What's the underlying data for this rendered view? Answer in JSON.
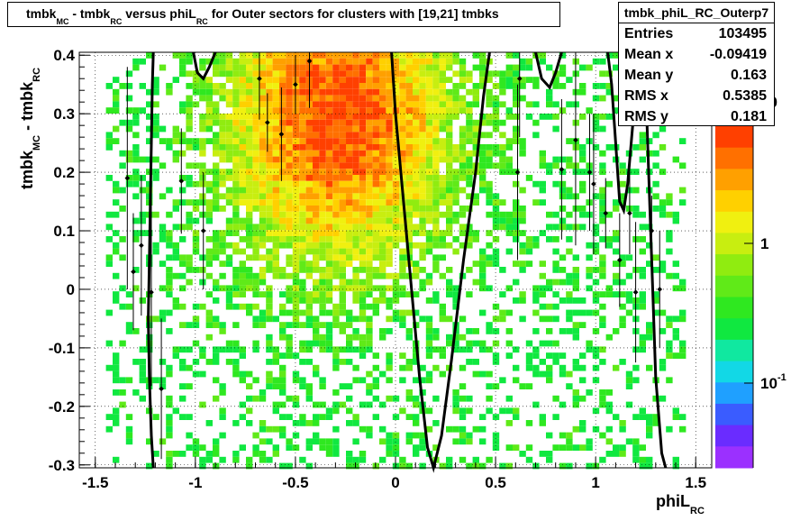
{
  "chart_data": {
    "type": "heatmap",
    "title": "tmbk_MC - tmbk_RC versus phiL_RC for Outer sectors for clusters with [19,21] tmbks",
    "title_parts": [
      "tmbk",
      "MC",
      " - tmbk",
      "RC",
      " versus phiL",
      "RC",
      " for Outer sectors for clusters with [19,21] tmbks"
    ],
    "xlabel": "phiL",
    "xlabel_sub": "RC",
    "ylabel": "tmbk",
    "ylabel_sub1": "MC",
    "ylabel_mid": " - tmbk",
    "ylabel_sub2": "RC",
    "xlim": [
      -1.58,
      1.58
    ],
    "ylim": [
      -0.305,
      0.405
    ],
    "x_ticks": [
      -1.5,
      -1,
      -0.5,
      0,
      0.5,
      1,
      1.5
    ],
    "x_tick_labels": [
      "-1.5",
      "-1",
      "-0.5",
      "0",
      "0.5",
      "1",
      "1.5"
    ],
    "y_ticks": [
      -0.3,
      -0.2,
      -0.1,
      0,
      0.1,
      0.2,
      0.3,
      0.4
    ],
    "y_tick_labels": [
      "-0.3",
      "-0.2",
      "-0.1",
      "0",
      "0.1",
      "0.2",
      "0.3",
      "0.4"
    ],
    "grid": true,
    "color_scale": "log",
    "z_tick_labels": [
      "10",
      "1",
      "10"
    ],
    "z_tick_exponents": [
      "",
      "",
      "-1"
    ],
    "hotspot": {
      "x": -0.3,
      "y": 0.3
    },
    "profile_points": [
      {
        "x": -1.34,
        "y": 0.19,
        "err": 0.19
      },
      {
        "x": -1.31,
        "y": 0.03,
        "err": 0.1
      },
      {
        "x": -1.27,
        "y": 0.075,
        "err": 0.12
      },
      {
        "x": -1.22,
        "y": -0.005,
        "err": 0.16
      },
      {
        "x": -1.17,
        "y": -0.17,
        "err": 0.12
      },
      {
        "x": -1.07,
        "y": 0.185,
        "err": 0.09
      },
      {
        "x": -0.96,
        "y": 0.1,
        "err": 0.1
      },
      {
        "x": -0.68,
        "y": 0.36,
        "err": 0.07
      },
      {
        "x": -0.64,
        "y": 0.285,
        "err": 0.05
      },
      {
        "x": -0.57,
        "y": 0.265,
        "err": 0.08
      },
      {
        "x": -0.5,
        "y": 0.35,
        "err": 0.05
      },
      {
        "x": -0.43,
        "y": 0.39,
        "err": 0.08
      },
      {
        "x": 0.62,
        "y": 0.36,
        "err": 0.1
      },
      {
        "x": 0.61,
        "y": 0.2,
        "err": 0.15
      },
      {
        "x": 0.83,
        "y": 0.205,
        "err": 0.12
      },
      {
        "x": 0.9,
        "y": 0.255,
        "err": 0.18
      },
      {
        "x": 0.97,
        "y": 0.2,
        "err": 0.1
      },
      {
        "x": 0.99,
        "y": 0.18,
        "err": 0.12
      },
      {
        "x": 1.05,
        "y": 0.13,
        "err": 0.06
      },
      {
        "x": 1.12,
        "y": 0.05,
        "err": 0.08
      },
      {
        "x": 1.17,
        "y": 0.13,
        "err": 0.07
      },
      {
        "x": 1.2,
        "y": -0.005,
        "err": 0.12
      },
      {
        "x": 1.28,
        "y": 0.1,
        "err": 0.06
      },
      {
        "x": 1.32,
        "y": 0.0,
        "err": 0.1
      }
    ],
    "fit_curve": [
      [
        -1.21,
        -0.31
      ],
      [
        -1.22,
        -0.25
      ],
      [
        -1.23,
        -0.15
      ],
      [
        -1.235,
        -0.05
      ],
      [
        -1.23,
        0.05
      ],
      [
        -1.225,
        0.15
      ],
      [
        -1.22,
        0.25
      ],
      [
        -1.215,
        0.35
      ],
      [
        -1.21,
        0.41
      ]
    ],
    "fit_curve_2": [
      [
        -1.01,
        0.41
      ],
      [
        -0.99,
        0.37
      ],
      [
        -0.96,
        0.36
      ],
      [
        -0.93,
        0.38
      ],
      [
        -0.9,
        0.405
      ]
    ],
    "fit_curve_3": [
      [
        -0.02,
        0.41
      ],
      [
        0.0,
        0.3
      ],
      [
        0.04,
        0.15
      ],
      [
        0.08,
        0.0
      ],
      [
        0.12,
        -0.15
      ],
      [
        0.16,
        -0.27
      ],
      [
        0.19,
        -0.305
      ],
      [
        0.23,
        -0.25
      ],
      [
        0.28,
        -0.12
      ],
      [
        0.34,
        0.05
      ],
      [
        0.4,
        0.2
      ],
      [
        0.44,
        0.33
      ],
      [
        0.47,
        0.41
      ]
    ],
    "fit_curve_4": [
      [
        0.7,
        0.41
      ],
      [
        0.73,
        0.36
      ],
      [
        0.77,
        0.345
      ],
      [
        0.8,
        0.37
      ],
      [
        0.83,
        0.41
      ]
    ],
    "fit_curve_5": [
      [
        1.06,
        0.41
      ],
      [
        1.08,
        0.35
      ],
      [
        1.1,
        0.25
      ],
      [
        1.12,
        0.15
      ],
      [
        1.14,
        0.135
      ],
      [
        1.16,
        0.18
      ],
      [
        1.19,
        0.3
      ],
      [
        1.21,
        0.41
      ]
    ],
    "fit_curve_6": [
      [
        1.24,
        0.41
      ],
      [
        1.255,
        0.3
      ],
      [
        1.27,
        0.15
      ],
      [
        1.285,
        0.0
      ],
      [
        1.3,
        -0.15
      ],
      [
        1.33,
        -0.28
      ],
      [
        1.35,
        -0.305
      ]
    ]
  },
  "stats": {
    "name": "tmbk_phiL_RC_Outerp7",
    "rows": [
      {
        "label": "Entries",
        "value": "103495"
      },
      {
        "label": "Mean x",
        "value": "-0.09419"
      },
      {
        "label": "Mean y",
        "value": "0.163"
      },
      {
        "label": "RMS x",
        "value": "0.5385"
      },
      {
        "label": "RMS y",
        "value": "0.181"
      }
    ]
  },
  "colors": {
    "hot": "#e04000",
    "warm": "#f59a00",
    "mid": "#ffe000",
    "cool": "#b8e800",
    "cold": "#20e020",
    "palette": [
      "#9b30ff",
      "#6a2cff",
      "#3a5cff",
      "#1fa0ff",
      "#12d8e6",
      "#10e8a0",
      "#10e840",
      "#2fe820",
      "#60ea18",
      "#90ec10",
      "#c8ee10",
      "#f0f010",
      "#ffd000",
      "#ffa000",
      "#ff7000",
      "#ff4000"
    ]
  }
}
